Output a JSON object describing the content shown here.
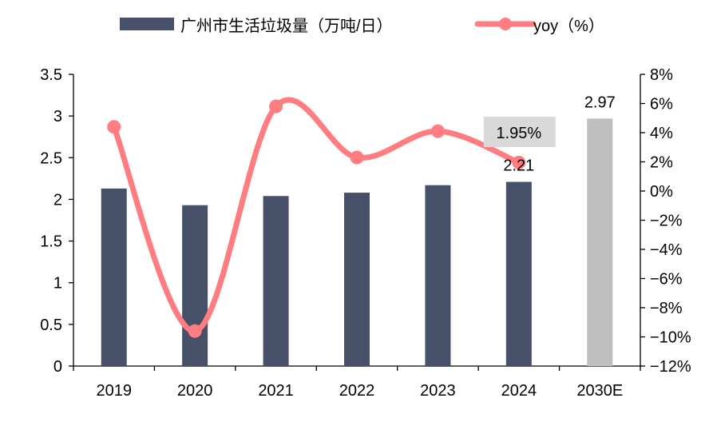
{
  "chart_data": {
    "type": "bar+line",
    "title": "",
    "categories": [
      "2019",
      "2020",
      "2021",
      "2022",
      "2023",
      "2024",
      "2030E"
    ],
    "series": [
      {
        "name": "广州市生活垃圾量（万吨/日）",
        "kind": "bar",
        "axis": "left",
        "values": [
          2.13,
          1.93,
          2.04,
          2.08,
          2.17,
          2.21,
          2.97
        ],
        "colors": [
          "#465069",
          "#465069",
          "#465069",
          "#465069",
          "#465069",
          "#465069",
          "#BFBFBF"
        ]
      },
      {
        "name": "yoy（%）",
        "kind": "line",
        "axis": "right",
        "values": [
          4.4,
          -9.6,
          5.8,
          2.3,
          4.1,
          1.95,
          null
        ],
        "color": "#FF7C80"
      }
    ],
    "left_axis": {
      "min": 0,
      "max": 3.5,
      "ticks": [
        "0",
        "0.5",
        "1",
        "1.5",
        "2",
        "2.5",
        "3",
        "3.5"
      ]
    },
    "right_axis": {
      "min": -12,
      "max": 8,
      "ticks": [
        "-12%",
        "-10%",
        "-8%",
        "-6%",
        "-4%",
        "-2%",
        "0%",
        "2%",
        "4%",
        "6%",
        "8%"
      ]
    },
    "data_labels": [
      {
        "text": "2.21",
        "category": "2024",
        "series": "bar"
      },
      {
        "text": "2.97",
        "category": "2030E",
        "series": "bar"
      }
    ],
    "callout": {
      "text": "1.95%",
      "category": "2024",
      "background": "#D9D9D9"
    },
    "legend": {
      "position": "top",
      "bar_label": "广州市生活垃圾量（万吨/日）",
      "line_label": "yoy（%）"
    }
  }
}
